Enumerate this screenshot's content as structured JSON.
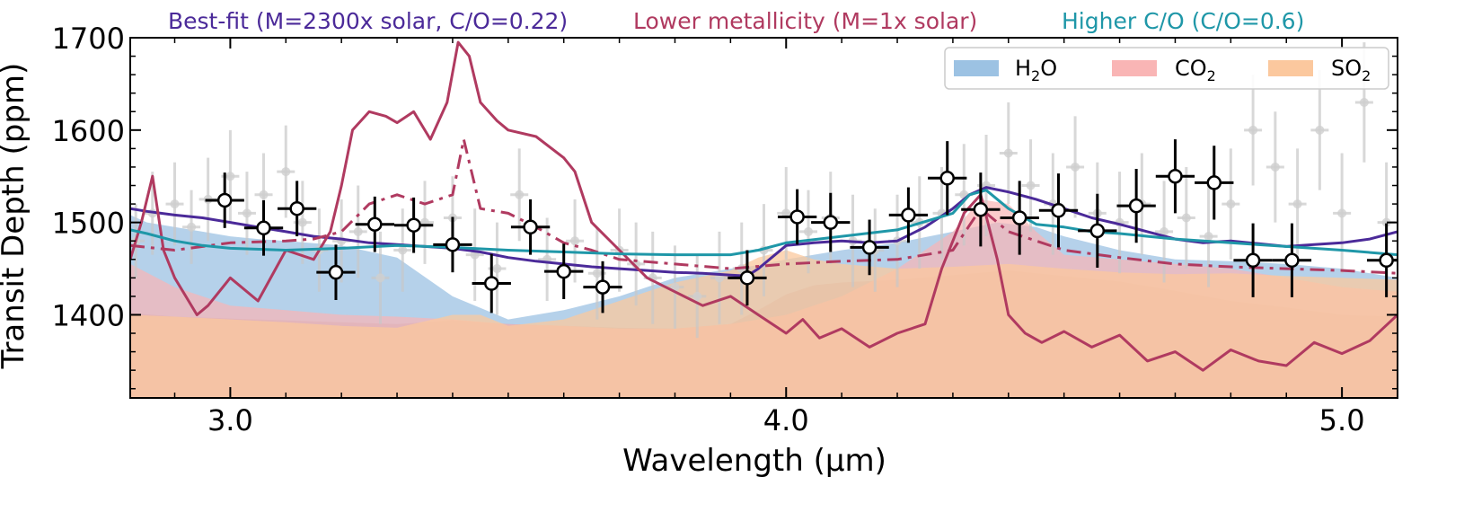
{
  "chart_data": {
    "type": "line",
    "title": "",
    "xlabel": "Wavelength (μm)",
    "ylabel": "Transit Depth (ppm)",
    "xlim": [
      2.82,
      5.1
    ],
    "ylim": [
      1310,
      1700
    ],
    "xticks": [
      3.0,
      4.0,
      5.0
    ],
    "xtick_labels": [
      "3.0",
      "4.0",
      "5.0"
    ],
    "yticks": [
      1400,
      1500,
      1600,
      1700
    ],
    "ytick_labels": [
      "1400",
      "1500",
      "1600",
      "1700"
    ],
    "grid": false,
    "legend_placement": "top-right",
    "model_labels": [
      {
        "text": "Best-fit (M=2300x solar, C/O=0.22)",
        "color": "#4b2a99"
      },
      {
        "text": "Lower metallicity (M=1x solar)",
        "color": "#b03a60"
      },
      {
        "text": "Higher C/O (C/O=0.6)",
        "color": "#1f97a8"
      }
    ],
    "legend": [
      {
        "label": "H",
        "sub": "2",
        "suffix": "O",
        "color": "#9cc2e3"
      },
      {
        "label": "CO",
        "sub": "2",
        "suffix": "",
        "color": "#f9b5b5"
      },
      {
        "label": "SO",
        "sub": "2",
        "suffix": "",
        "color": "#fbc89e"
      }
    ],
    "bands": [
      {
        "name": "H2O",
        "color": "#9cc2e3",
        "opacity": 0.75,
        "x": [
          2.82,
          2.85,
          2.9,
          2.95,
          3.0,
          3.05,
          3.1,
          3.2,
          3.3,
          3.4,
          3.5,
          3.6,
          3.7,
          3.8,
          3.85,
          3.9,
          3.93,
          3.96,
          4.0,
          4.1,
          4.2,
          4.3,
          4.38,
          4.45,
          4.5,
          4.6,
          4.7,
          4.8,
          4.9,
          5.0,
          5.1
        ],
        "y": [
          1508,
          1500,
          1495,
          1490,
          1485,
          1482,
          1480,
          1475,
          1462,
          1420,
          1395,
          1405,
          1420,
          1440,
          1445,
          1450,
          1452,
          1455,
          1460,
          1470,
          1478,
          1490,
          1500,
          1495,
          1485,
          1470,
          1460,
          1458,
          1455,
          1450,
          1440
        ]
      },
      {
        "name": "CO2",
        "color": "#f9b5b5",
        "opacity": 0.7,
        "x": [
          2.82,
          2.9,
          3.0,
          3.1,
          3.2,
          3.3,
          3.4,
          3.5,
          3.6,
          3.7,
          3.8,
          3.9,
          4.0,
          4.1,
          4.2,
          4.3,
          4.35,
          4.4,
          4.45,
          4.5,
          4.6,
          4.7,
          4.8,
          4.9,
          5.0,
          5.1
        ],
        "y": [
          1455,
          1430,
          1410,
          1405,
          1400,
          1398,
          1395,
          1390,
          1388,
          1385,
          1385,
          1390,
          1400,
          1420,
          1450,
          1490,
          1525,
          1520,
          1490,
          1465,
          1460,
          1455,
          1450,
          1440,
          1430,
          1425
        ]
      },
      {
        "name": "SO2",
        "color": "#fbc89e",
        "opacity": 0.75,
        "x": [
          2.82,
          2.9,
          3.0,
          3.1,
          3.2,
          3.3,
          3.4,
          3.45,
          3.5,
          3.6,
          3.7,
          3.8,
          3.9,
          3.95,
          4.0,
          4.05,
          4.1,
          4.2,
          4.3,
          4.4,
          4.5,
          4.6,
          4.7,
          4.8,
          4.9,
          5.0,
          5.1
        ],
        "y": [
          1400,
          1398,
          1395,
          1392,
          1388,
          1386,
          1400,
          1400,
          1388,
          1395,
          1415,
          1435,
          1448,
          1462,
          1470,
          1460,
          1455,
          1450,
          1452,
          1455,
          1450,
          1446,
          1444,
          1445,
          1442,
          1440,
          1438
        ]
      },
      {
        "name": "base",
        "color": "#e2937b",
        "opacity": 1.0,
        "x": [
          2.82,
          2.9,
          3.0,
          3.1,
          3.2,
          3.3,
          3.4,
          3.5,
          3.6,
          3.7,
          3.8,
          3.9,
          3.95,
          4.0,
          4.05,
          4.1,
          4.2,
          4.3,
          4.4,
          4.5,
          4.6,
          4.7,
          4.8,
          4.9,
          5.0,
          5.1
        ],
        "y": [
          1402,
          1398,
          1396,
          1394,
          1392,
          1390,
          1394,
          1390,
          1388,
          1386,
          1385,
          1390,
          1405,
          1422,
          1432,
          1435,
          1438,
          1443,
          1448,
          1442,
          1436,
          1426,
          1415,
          1408,
          1400,
          1398
        ]
      }
    ],
    "series": [
      {
        "name": "Best-fit (M=2300x solar, C/O=0.22)",
        "color": "#4b2a99",
        "dash": "solid",
        "x": [
          2.82,
          2.85,
          2.9,
          2.95,
          3.0,
          3.05,
          3.1,
          3.15,
          3.2,
          3.25,
          3.3,
          3.35,
          3.4,
          3.45,
          3.5,
          3.55,
          3.6,
          3.65,
          3.7,
          3.75,
          3.8,
          3.85,
          3.9,
          3.93,
          3.95,
          4.0,
          4.05,
          4.1,
          4.15,
          4.2,
          4.25,
          4.3,
          4.33,
          4.36,
          4.4,
          4.45,
          4.5,
          4.55,
          4.6,
          4.65,
          4.7,
          4.75,
          4.8,
          4.85,
          4.9,
          4.95,
          5.0,
          5.05,
          5.1
        ],
        "y": [
          1515,
          1512,
          1508,
          1505,
          1500,
          1495,
          1490,
          1485,
          1482,
          1478,
          1476,
          1474,
          1472,
          1468,
          1462,
          1458,
          1455,
          1452,
          1450,
          1448,
          1446,
          1445,
          1443,
          1442,
          1450,
          1475,
          1478,
          1480,
          1478,
          1480,
          1495,
          1515,
          1530,
          1538,
          1533,
          1525,
          1515,
          1505,
          1498,
          1490,
          1482,
          1478,
          1480,
          1477,
          1474,
          1476,
          1478,
          1482,
          1490
        ]
      },
      {
        "name": "Lower metallicity (M=1x solar)",
        "color": "#b03a60",
        "dash": "solid",
        "x": [
          2.82,
          2.84,
          2.86,
          2.88,
          2.9,
          2.92,
          2.94,
          2.96,
          3.0,
          3.05,
          3.1,
          3.15,
          3.18,
          3.2,
          3.22,
          3.25,
          3.28,
          3.3,
          3.33,
          3.36,
          3.39,
          3.41,
          3.43,
          3.45,
          3.48,
          3.5,
          3.55,
          3.6,
          3.62,
          3.65,
          3.7,
          3.75,
          3.8,
          3.85,
          3.9,
          3.95,
          4.0,
          4.03,
          4.06,
          4.1,
          4.15,
          4.2,
          4.25,
          4.28,
          4.32,
          4.35,
          4.38,
          4.4,
          4.43,
          4.46,
          4.5,
          4.55,
          4.6,
          4.65,
          4.7,
          4.75,
          4.8,
          4.85,
          4.9,
          4.95,
          5.0,
          5.05,
          5.1
        ],
        "y": [
          1460,
          1500,
          1550,
          1470,
          1440,
          1420,
          1400,
          1410,
          1440,
          1415,
          1470,
          1460,
          1490,
          1540,
          1600,
          1620,
          1615,
          1608,
          1620,
          1590,
          1630,
          1695,
          1680,
          1630,
          1610,
          1600,
          1593,
          1570,
          1555,
          1500,
          1470,
          1440,
          1425,
          1410,
          1420,
          1400,
          1380,
          1395,
          1375,
          1385,
          1365,
          1380,
          1390,
          1450,
          1510,
          1530,
          1460,
          1400,
          1380,
          1370,
          1382,
          1365,
          1378,
          1350,
          1360,
          1340,
          1362,
          1350,
          1345,
          1370,
          1358,
          1372,
          1400
        ]
      },
      {
        "name": "Lower metallicity dash-dot",
        "color": "#b03a60",
        "dash": "dashdot",
        "x": [
          2.82,
          2.9,
          3.0,
          3.1,
          3.15,
          3.2,
          3.25,
          3.3,
          3.35,
          3.4,
          3.42,
          3.45,
          3.5,
          3.55,
          3.6,
          3.65,
          3.7,
          3.8,
          3.9,
          4.0,
          4.1,
          4.2,
          4.3,
          4.35,
          4.4,
          4.5,
          4.6,
          4.7,
          4.8,
          4.9,
          5.0,
          5.1
        ],
        "y": [
          1475,
          1470,
          1478,
          1480,
          1482,
          1490,
          1520,
          1530,
          1520,
          1530,
          1590,
          1515,
          1510,
          1495,
          1478,
          1470,
          1460,
          1455,
          1450,
          1455,
          1458,
          1460,
          1470,
          1515,
          1490,
          1470,
          1462,
          1455,
          1452,
          1450,
          1448,
          1445
        ]
      },
      {
        "name": "Higher C/O (C/O=0.6)",
        "color": "#1f97a8",
        "dash": "solid",
        "x": [
          2.82,
          2.85,
          2.9,
          2.95,
          3.0,
          3.1,
          3.2,
          3.3,
          3.4,
          3.5,
          3.6,
          3.7,
          3.8,
          3.9,
          3.95,
          4.0,
          4.1,
          4.2,
          4.3,
          4.33,
          4.36,
          4.4,
          4.45,
          4.5,
          4.55,
          4.6,
          4.7,
          4.8,
          4.9,
          5.0,
          5.1
        ],
        "y": [
          1492,
          1488,
          1480,
          1475,
          1472,
          1470,
          1472,
          1475,
          1473,
          1470,
          1468,
          1466,
          1465,
          1465,
          1470,
          1478,
          1485,
          1492,
          1510,
          1530,
          1535,
          1515,
          1498,
          1495,
          1490,
          1488,
          1482,
          1478,
          1474,
          1470,
          1465
        ]
      }
    ],
    "data_points": {
      "x": [
        2.99,
        3.06,
        3.12,
        3.19,
        3.26,
        3.33,
        3.4,
        3.47,
        3.54,
        3.6,
        3.67,
        3.93,
        4.02,
        4.08,
        4.15,
        4.22,
        4.29,
        4.35,
        4.42,
        4.49,
        4.56,
        4.63,
        4.7,
        4.77,
        4.84,
        4.91,
        5.08
      ],
      "y": [
        1524,
        1494,
        1515,
        1446,
        1498,
        1497,
        1476,
        1434,
        1495,
        1447,
        1430,
        1440,
        1506,
        1500,
        1473,
        1508,
        1548,
        1514,
        1505,
        1513,
        1491,
        1518,
        1550,
        1543,
        1459,
        1459,
        1459
      ],
      "yerr": [
        30,
        30,
        30,
        30,
        30,
        30,
        30,
        32,
        30,
        30,
        28,
        30,
        30,
        32,
        30,
        30,
        40,
        40,
        40,
        40,
        40,
        40,
        40,
        40,
        40,
        40,
        40
      ],
      "xerr": [
        0.035,
        0.035,
        0.035,
        0.035,
        0.035,
        0.035,
        0.035,
        0.035,
        0.035,
        0.035,
        0.035,
        0.035,
        0.035,
        0.035,
        0.035,
        0.035,
        0.035,
        0.035,
        0.035,
        0.035,
        0.035,
        0.035,
        0.035,
        0.035,
        0.035,
        0.035,
        0.035
      ]
    },
    "faint_points": {
      "x": [
        2.83,
        2.86,
        2.9,
        2.93,
        2.96,
        3.0,
        3.03,
        3.06,
        3.1,
        3.13,
        3.16,
        3.2,
        3.23,
        3.27,
        3.31,
        3.35,
        3.4,
        3.44,
        3.48,
        3.52,
        3.57,
        3.62,
        3.66,
        3.7,
        3.73,
        3.76,
        3.8,
        3.84,
        3.88,
        3.92,
        3.96,
        4.0,
        4.04,
        4.08,
        4.12,
        4.16,
        4.2,
        4.24,
        4.28,
        4.32,
        4.36,
        4.4,
        4.44,
        4.48,
        4.52,
        4.56,
        4.6,
        4.64,
        4.68,
        4.72,
        4.76,
        4.8,
        4.84,
        4.88,
        4.92,
        4.96,
        5.0,
        5.04,
        5.08
      ],
      "y": [
        1480,
        1510,
        1520,
        1495,
        1525,
        1550,
        1510,
        1530,
        1555,
        1500,
        1470,
        1480,
        1490,
        1440,
        1470,
        1500,
        1505,
        1465,
        1450,
        1530,
        1460,
        1480,
        1445,
        1470,
        1455,
        1440,
        1430,
        1420,
        1440,
        1450,
        1470,
        1510,
        1490,
        1505,
        1480,
        1470,
        1480,
        1500,
        1510,
        1530,
        1540,
        1575,
        1540,
        1520,
        1560,
        1510,
        1500,
        1520,
        1490,
        1505,
        1485,
        1520,
        1600,
        1560,
        1520,
        1600,
        1510,
        1630,
        1500
      ],
      "yerr": [
        40,
        45,
        45,
        40,
        45,
        50,
        45,
        45,
        50,
        45,
        45,
        45,
        50,
        50,
        45,
        45,
        45,
        50,
        50,
        50,
        45,
        45,
        50,
        45,
        45,
        50,
        45,
        45,
        50,
        50,
        50,
        50,
        45,
        50,
        50,
        45,
        50,
        50,
        50,
        55,
        55,
        55,
        50,
        55,
        55,
        55,
        55,
        55,
        55,
        55,
        55,
        60,
        60,
        60,
        60,
        65,
        65,
        65,
        65
      ]
    }
  }
}
